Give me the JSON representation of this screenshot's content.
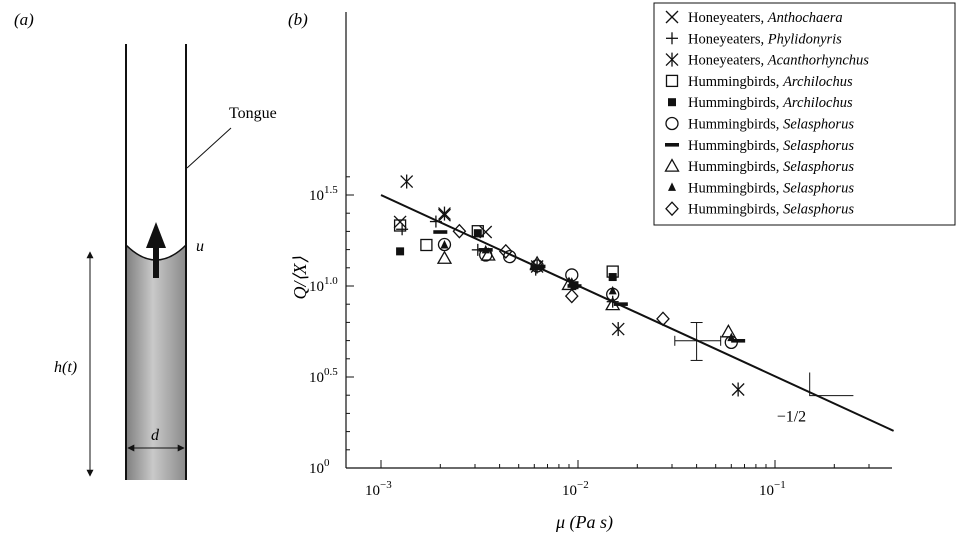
{
  "panel_a": {
    "label": "(a)",
    "tongue_label": "Tongue",
    "u_label": "u",
    "h_label": "h(t)",
    "d_label": "d"
  },
  "panel_b": {
    "label": "(b)"
  },
  "chart_data": {
    "type": "scatter",
    "xscale": "log",
    "yscale": "log",
    "xlabel": "μ (Pa s)",
    "ylabel": "Q/⟨X⟩",
    "xlim": [
      0.001,
      0.5
    ],
    "ylim": [
      1,
      50
    ],
    "xticks": [
      {
        "value": 0.001,
        "base": "10",
        "exp": "−3"
      },
      {
        "value": 0.01,
        "base": "10",
        "exp": "−2"
      },
      {
        "value": 0.1,
        "base": "10",
        "exp": "−1"
      }
    ],
    "yticks": [
      {
        "value": 1,
        "base": "10",
        "exp": "0"
      },
      {
        "value": 3.162,
        "base": "10",
        "exp": "0.5"
      },
      {
        "value": 10,
        "base": "10",
        "exp": "1.0"
      },
      {
        "value": 31.62,
        "base": "10",
        "exp": "1.5"
      }
    ],
    "fit_line": {
      "x": [
        0.001,
        0.4
      ],
      "y": [
        31.6,
        1.6
      ],
      "slope_label": "−1/2"
    },
    "error_bar": {
      "x": 0.04,
      "y": 5.0,
      "x_low": 0.031,
      "x_high": 0.053,
      "y_low": 3.9,
      "y_high": 6.3
    },
    "legend_position": "top-right",
    "series": [
      {
        "name": "Honeyeaters, ",
        "genus": "Anthochaera",
        "marker": "x",
        "points": [
          [
            0.00125,
            22.5
          ],
          [
            0.0021,
            24.5
          ],
          [
            0.0034,
            19.8
          ]
        ]
      },
      {
        "name": "Honeyeaters, ",
        "genus": "Phylidonyris",
        "marker": "plus",
        "points": [
          [
            0.00128,
            20.5
          ],
          [
            0.0019,
            22.6
          ],
          [
            0.0031,
            15.8
          ],
          [
            0.0061,
            12.3
          ],
          [
            0.015,
            8.2
          ]
        ]
      },
      {
        "name": "Honeyeaters, ",
        "genus": "Acanthorhynchus",
        "marker": "asterisk",
        "points": [
          [
            0.00135,
            37.5
          ],
          [
            0.0021,
            25.0
          ],
          [
            0.0062,
            12.8
          ],
          [
            0.016,
            5.8
          ],
          [
            0.065,
            2.7
          ]
        ]
      },
      {
        "name": "Hummingbirds, ",
        "genus": "Archilochus",
        "marker": "square-open",
        "points": [
          [
            0.00125,
            21.5
          ],
          [
            0.0017,
            16.8
          ],
          [
            0.0031,
            20.0
          ],
          [
            0.015,
            12.0
          ]
        ]
      },
      {
        "name": "Hummingbirds, ",
        "genus": "Archilochus",
        "marker": "square-filled",
        "points": [
          [
            0.00125,
            15.5
          ],
          [
            0.0031,
            19.5
          ],
          [
            0.0096,
            10.1
          ],
          [
            0.015,
            11.2
          ]
        ]
      },
      {
        "name": "Hummingbirds, ",
        "genus": "Selasphorus",
        "marker": "circle-open",
        "points": [
          [
            0.0021,
            16.9
          ],
          [
            0.0034,
            14.8
          ],
          [
            0.0045,
            14.5
          ],
          [
            0.0062,
            12.9
          ],
          [
            0.0093,
            11.5
          ],
          [
            0.015,
            9.0
          ],
          [
            0.06,
            4.9
          ]
        ]
      },
      {
        "name": "Hummingbirds, ",
        "genus": "Selasphorus",
        "marker": "dash",
        "points": [
          [
            0.002,
            19.8
          ],
          [
            0.0034,
            15.8
          ],
          [
            0.0063,
            12.8
          ],
          [
            0.0096,
            10.0
          ],
          [
            0.0165,
            7.95
          ],
          [
            0.065,
            5.0
          ]
        ]
      },
      {
        "name": "Hummingbirds, ",
        "genus": "Selasphorus",
        "marker": "triangle-open",
        "points": [
          [
            0.0021,
            14.2
          ],
          [
            0.0035,
            14.8
          ],
          [
            0.0062,
            13.3
          ],
          [
            0.009,
            10.2
          ],
          [
            0.015,
            7.9
          ],
          [
            0.058,
            5.6
          ]
        ]
      },
      {
        "name": "Hummingbirds, ",
        "genus": "Selasphorus",
        "marker": "triangle-filled",
        "points": [
          [
            0.0021,
            16.8
          ],
          [
            0.0034,
            15.8
          ],
          [
            0.0093,
            10.5
          ],
          [
            0.015,
            9.4
          ],
          [
            0.06,
            5.2
          ]
        ]
      },
      {
        "name": "Hummingbirds, ",
        "genus": "Selasphorus",
        "marker": "diamond-open",
        "points": [
          [
            0.0025,
            20.0
          ],
          [
            0.0043,
            15.5
          ],
          [
            0.0093,
            8.8
          ],
          [
            0.027,
            6.6
          ]
        ]
      }
    ]
  }
}
